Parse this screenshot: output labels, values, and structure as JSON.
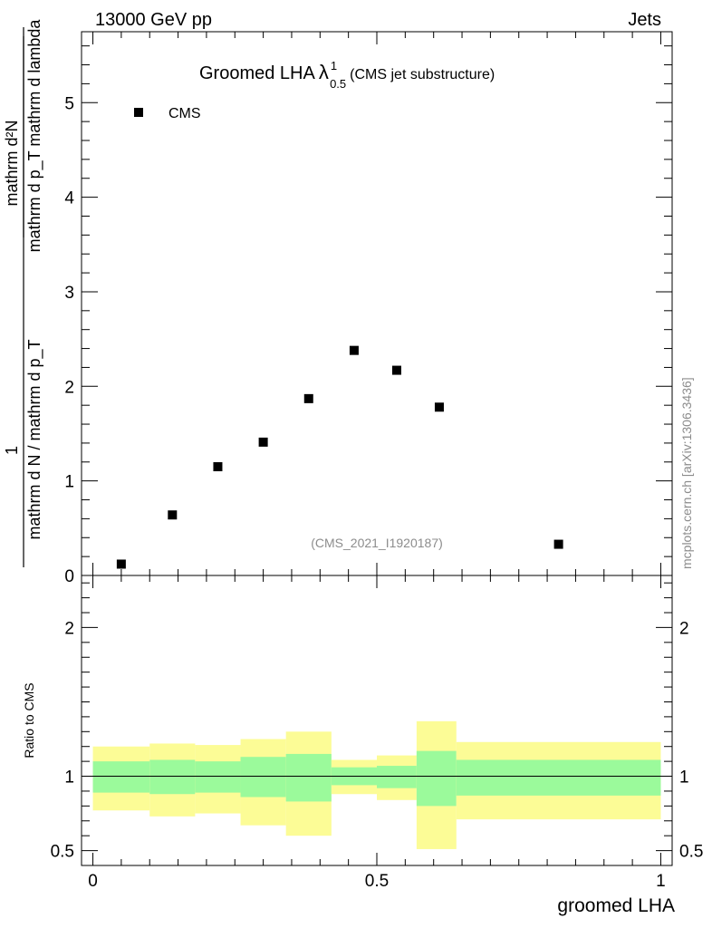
{
  "header": {
    "left": "13000 GeV pp",
    "right": "Jets"
  },
  "title": {
    "main": "Groomed LHA",
    "symbol": "λ",
    "superscript": "1",
    "subscript": "0.5",
    "suffix": "(CMS jet substructure)"
  },
  "analysis_id": "(CMS_2021_I1920187)",
  "side_label": "mcplots.cern.ch [arXiv:1306.3436]",
  "y_label_top": {
    "numerator": "mathrm d²N",
    "denominator": "mathrm d p_T mathrm d lambda",
    "prefix_numerator": "1",
    "prefix_denominator": "mathrm d N / mathrm d p_T"
  },
  "y_label_bottom": "Ratio to CMS",
  "x_label": "groomed LHA",
  "colors": {
    "inner_band": "#9bfa9b",
    "outer_band": "#fcfc96",
    "marker": "#000000"
  },
  "chart_data": [
    {
      "type": "scatter",
      "panel": "main",
      "title": "Groomed LHA λ^1_0.5 (CMS jet substructure)",
      "xlabel": "groomed LHA",
      "ylabel": "1/(dN/dpT) d²N/(dpT dλ)",
      "xlim": [
        -0.02,
        1.02
      ],
      "ylim": [
        0,
        5.75
      ],
      "yticks": [
        0,
        1,
        2,
        3,
        4,
        5
      ],
      "legend": "top-left",
      "series": [
        {
          "name": "CMS",
          "marker": "square",
          "x": [
            0.05,
            0.14,
            0.22,
            0.3,
            0.38,
            0.46,
            0.535,
            0.61,
            0.82
          ],
          "y": [
            0.12,
            0.64,
            1.15,
            1.41,
            1.87,
            2.38,
            2.17,
            1.78,
            0.33
          ]
        }
      ]
    },
    {
      "type": "area",
      "panel": "ratio",
      "ylabel": "Ratio to CMS",
      "xlabel": "groomed LHA",
      "xlim": [
        -0.02,
        1.02
      ],
      "ylim": [
        0.4,
        2.35
      ],
      "yticks": [
        0.5,
        1,
        2
      ],
      "ytick_labels": [
        "0.5",
        "1",
        "2"
      ],
      "xticks": [
        0,
        0.5,
        1
      ],
      "xtick_labels": [
        "0",
        "0.5",
        "1"
      ],
      "reference_line": 1,
      "bins": [
        {
          "x_lo": 0.0,
          "x_hi": 0.1,
          "inner": [
            0.89,
            1.1
          ],
          "outer": [
            0.77,
            1.2
          ]
        },
        {
          "x_lo": 0.1,
          "x_hi": 0.18,
          "inner": [
            0.88,
            1.11
          ],
          "outer": [
            0.73,
            1.22
          ]
        },
        {
          "x_lo": 0.18,
          "x_hi": 0.26,
          "inner": [
            0.89,
            1.1
          ],
          "outer": [
            0.75,
            1.21
          ]
        },
        {
          "x_lo": 0.26,
          "x_hi": 0.34,
          "inner": [
            0.86,
            1.13
          ],
          "outer": [
            0.67,
            1.25
          ]
        },
        {
          "x_lo": 0.34,
          "x_hi": 0.42,
          "inner": [
            0.83,
            1.15
          ],
          "outer": [
            0.6,
            1.3
          ]
        },
        {
          "x_lo": 0.42,
          "x_hi": 0.5,
          "inner": [
            0.94,
            1.06
          ],
          "outer": [
            0.88,
            1.11
          ]
        },
        {
          "x_lo": 0.5,
          "x_hi": 0.57,
          "inner": [
            0.92,
            1.07
          ],
          "outer": [
            0.84,
            1.14
          ]
        },
        {
          "x_lo": 0.57,
          "x_hi": 0.64,
          "inner": [
            0.8,
            1.17
          ],
          "outer": [
            0.51,
            1.37
          ]
        },
        {
          "x_lo": 0.64,
          "x_hi": 1.0,
          "inner": [
            0.87,
            1.11
          ],
          "outer": [
            0.71,
            1.23
          ]
        }
      ]
    }
  ]
}
